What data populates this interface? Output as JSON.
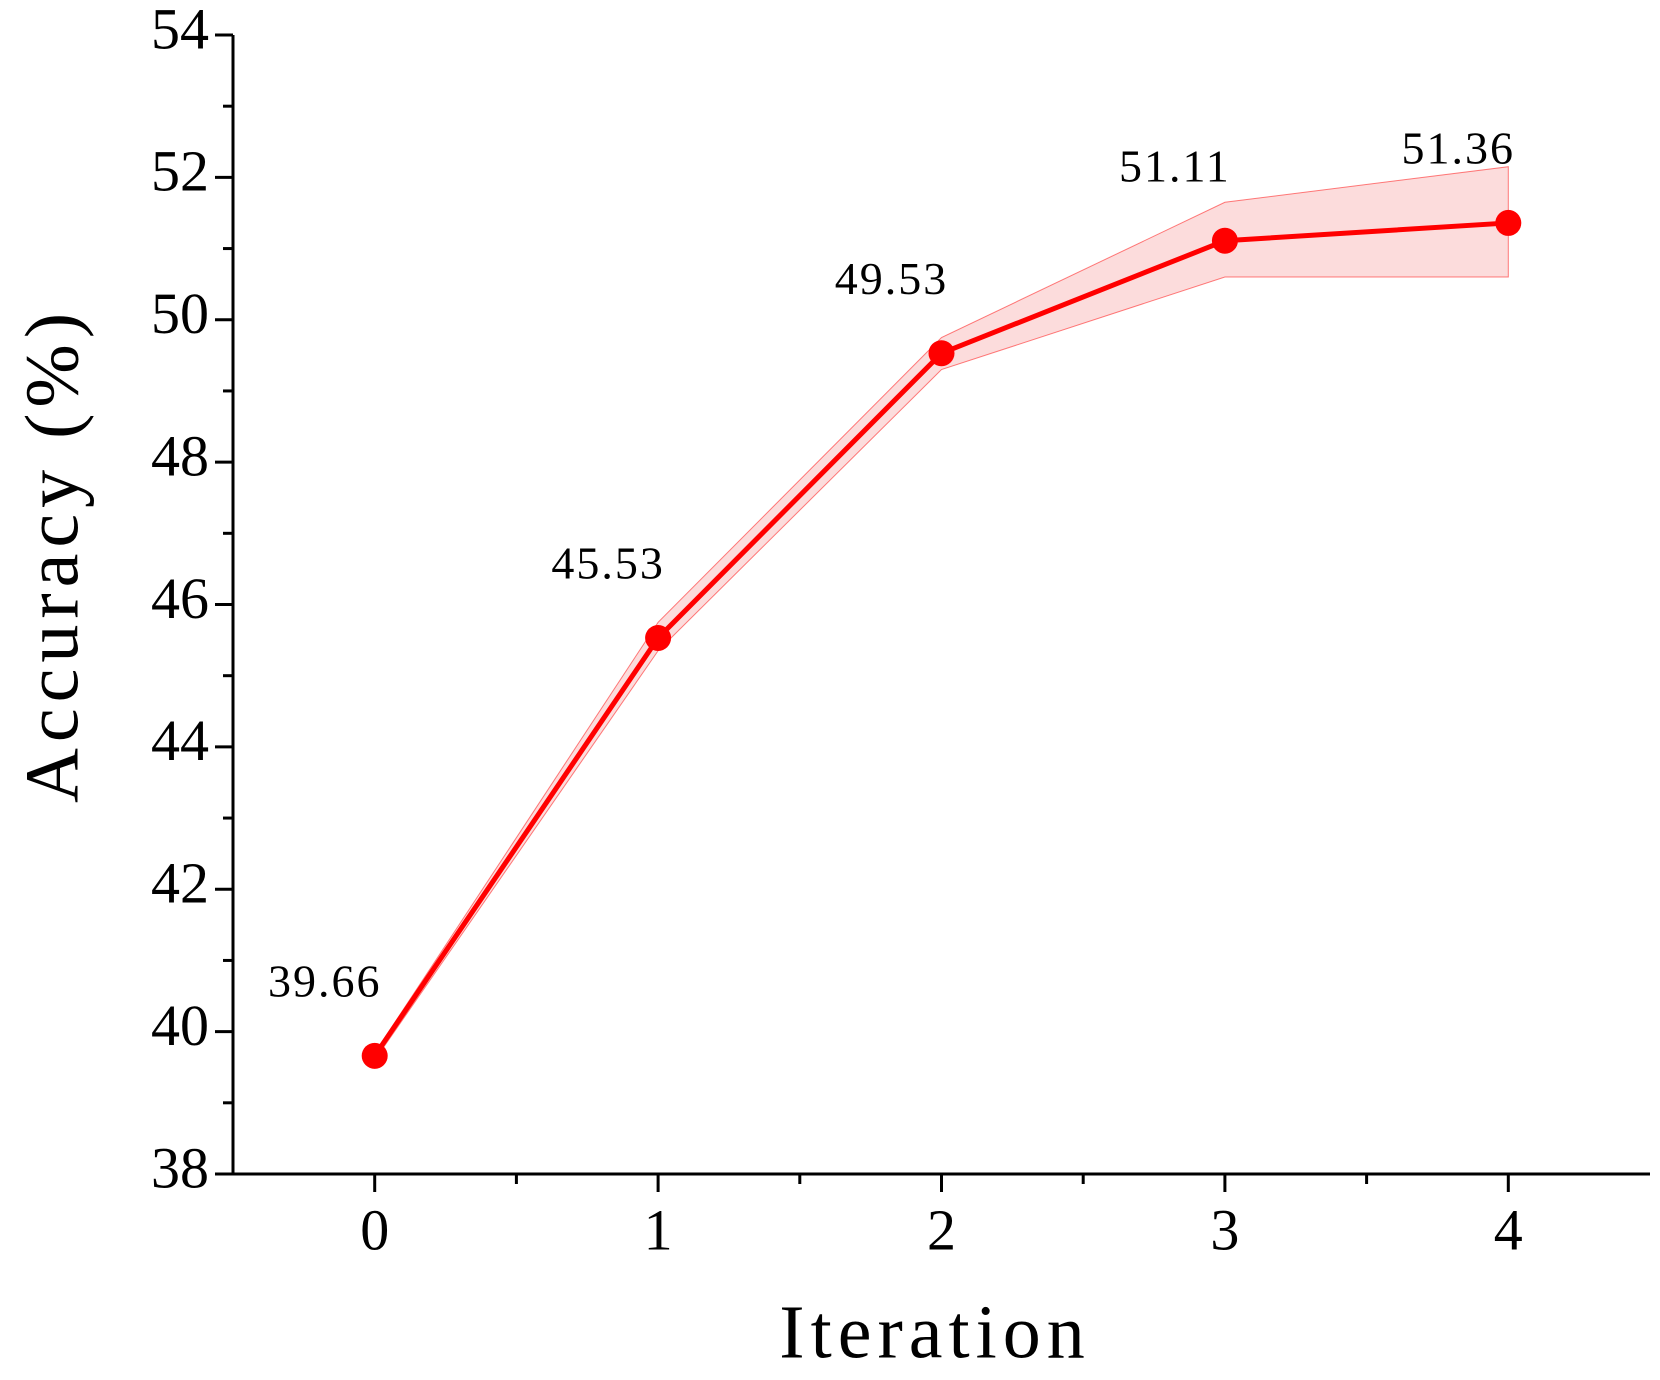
{
  "chart_data": {
    "type": "line",
    "x_label": "Iteration",
    "y_label": "Accuracy (%)",
    "x": [
      0,
      1,
      2,
      3,
      4
    ],
    "values": [
      39.66,
      45.53,
      49.53,
      51.11,
      51.36
    ],
    "upper": [
      39.7,
      45.75,
      49.75,
      51.65,
      52.15
    ],
    "lower": [
      39.6,
      45.35,
      49.3,
      50.6,
      50.6
    ],
    "color": "#ff0000",
    "band_color": "#fcdcdc",
    "xlim": [
      -0.5,
      4.5
    ],
    "xticks": [
      0,
      1,
      2,
      3,
      4
    ],
    "ylim": [
      38,
      54
    ],
    "yticks": [
      38,
      40,
      42,
      44,
      46,
      48,
      50,
      52,
      54
    ]
  }
}
